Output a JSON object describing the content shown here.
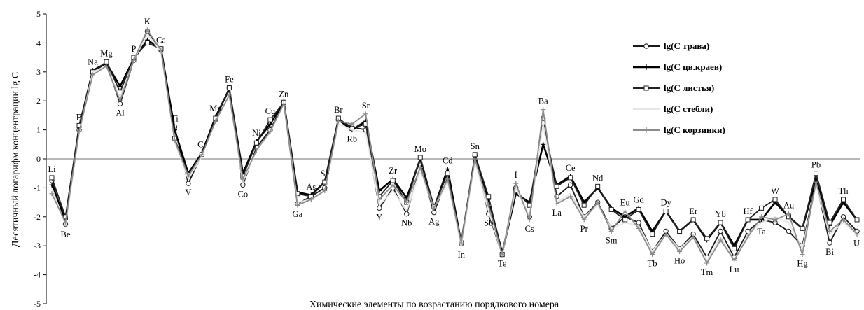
{
  "chart_data": {
    "type": "line",
    "title": "",
    "xlabel": "Химические элементы по возрастанию порядкового номера",
    "ylabel": "Десятичный логарифм концентрации lg C",
    "ylim": [
      -5,
      5
    ],
    "yticks": [
      5,
      4,
      3,
      2,
      1,
      0,
      -1,
      -2,
      -3,
      -4,
      -5
    ],
    "grid": false,
    "legend_position": "right",
    "categories": [
      "Li",
      "Be",
      "B",
      "Na",
      "Mg",
      "Al",
      "P",
      "K",
      "Ca",
      "Ti",
      "V",
      "Cr",
      "Mn",
      "Fe",
      "Co",
      "Ni",
      "Cu",
      "Zn",
      "Ga",
      "As",
      "Se",
      "Br",
      "Rb",
      "Sr",
      "Y",
      "Zr",
      "Nb",
      "Mo",
      "Ag",
      "Cd",
      "In",
      "Sn",
      "Sb",
      "Te",
      "I",
      "Cs",
      "Ba",
      "La",
      "Ce",
      "Pr",
      "Nd",
      "Sm",
      "Eu",
      "Gd",
      "Tb",
      "Dy",
      "Ho",
      "Er",
      "Tm",
      "Yb",
      "Lu",
      "Hf",
      "Ta",
      "W",
      "Au",
      "Hg",
      "Pb",
      "Bi",
      "Th",
      "U"
    ],
    "label_pos": [
      "above",
      "below",
      "above",
      "above",
      "above",
      "below",
      "above",
      "above",
      "above",
      "above",
      "below",
      "above",
      "above",
      "above",
      "below",
      "above",
      "above",
      "above",
      "below",
      "above",
      "above",
      "above",
      "below",
      "above",
      "below",
      "above",
      "below",
      "above",
      "below",
      "above",
      "below",
      "above",
      "below",
      "below",
      "above",
      "below",
      "above",
      "below",
      "above",
      "below",
      "above",
      "below",
      "above",
      "above",
      "below",
      "above",
      "below",
      "above",
      "below",
      "above",
      "below",
      "above",
      "below",
      "above",
      "above",
      "below",
      "above",
      "below",
      "above",
      "below"
    ],
    "series": [
      {
        "name": "lg(С трава)",
        "color": "#1a1a1a",
        "marker": "circle",
        "values": [
          -0.75,
          -2.25,
          1.0,
          3.0,
          3.3,
          1.9,
          3.4,
          4.4,
          3.75,
          1.1,
          -0.85,
          0.15,
          1.35,
          2.45,
          -0.9,
          0.4,
          1.0,
          1.95,
          -1.55,
          -1.3,
          -1.0,
          1.35,
          1.1,
          1.0,
          -1.7,
          -1.0,
          -1.9,
          -0.25,
          -1.85,
          -0.65,
          -2.9,
          0.1,
          -1.9,
          -3.3,
          -1.0,
          -2.0,
          1.4,
          -1.3,
          -0.9,
          -2.0,
          -1.5,
          -2.4,
          -2.0,
          -2.2,
          -3.2,
          -2.5,
          -3.1,
          -2.6,
          -3.4,
          -2.5,
          -3.4,
          -2.5,
          -2.1,
          -2.2,
          -2.5,
          -3.0,
          -0.8,
          -2.9,
          -2.0,
          -2.5
        ]
      },
      {
        "name": "lg(С цв.краев)",
        "color": "#000000",
        "marker": "cross",
        "values": [
          -0.9,
          -2.1,
          1.1,
          3.05,
          3.3,
          2.5,
          3.45,
          4.1,
          3.8,
          1.0,
          -0.5,
          0.2,
          1.45,
          2.4,
          -0.5,
          0.6,
          1.2,
          1.95,
          -1.15,
          -1.25,
          -0.8,
          1.35,
          1.0,
          1.3,
          -1.1,
          -0.7,
          -1.35,
          0.0,
          -1.7,
          -0.35,
          -2.9,
          0.0,
          -1.4,
          -3.25,
          -1.2,
          -1.5,
          0.5,
          -0.9,
          -0.6,
          -1.5,
          -1.0,
          -1.7,
          -2.0,
          -1.7,
          -2.5,
          -1.8,
          -2.5,
          -2.1,
          -2.8,
          -2.2,
          -3.0,
          -2.1,
          -2.1,
          -1.5,
          -2.0,
          -2.4,
          -0.7,
          -2.3,
          -1.5,
          -2.1
        ]
      },
      {
        "name": "lg(С листья)",
        "color": "#222222",
        "marker": "square",
        "values": [
          -0.65,
          -2.0,
          1.15,
          3.0,
          3.35,
          2.3,
          3.5,
          4.0,
          3.8,
          0.7,
          -0.55,
          0.15,
          1.4,
          2.45,
          -0.6,
          0.55,
          1.35,
          1.95,
          -1.2,
          -1.3,
          -0.8,
          1.4,
          1.05,
          1.2,
          -1.3,
          -0.75,
          -1.5,
          0.05,
          -1.65,
          -0.5,
          -2.9,
          0.15,
          -1.3,
          -3.3,
          -1.1,
          -1.6,
          1.25,
          -0.95,
          -0.65,
          -1.6,
          -0.95,
          -1.75,
          -2.1,
          -1.75,
          -2.6,
          -1.8,
          -2.5,
          -2.1,
          -2.75,
          -2.2,
          -3.1,
          -2.1,
          -1.7,
          -1.4,
          -2.0,
          -2.4,
          -0.5,
          -2.2,
          -1.4,
          -2.1
        ]
      },
      {
        "name": "lg(С стебли)",
        "color": "#e6e6e6",
        "marker": "none",
        "values": [
          -1.0,
          -2.3,
          0.9,
          3.0,
          3.2,
          2.1,
          3.4,
          4.3,
          3.7,
          0.6,
          -0.7,
          0.1,
          1.3,
          2.2,
          -0.8,
          0.3,
          0.9,
          1.9,
          -1.5,
          -1.4,
          -1.1,
          1.2,
          1.0,
          0.9,
          -1.6,
          -1.1,
          -1.8,
          -0.4,
          -1.7,
          -0.8,
          -3.0,
          -0.1,
          -1.8,
          -3.3,
          -1.0,
          -2.0,
          1.2,
          -1.5,
          -1.2,
          -2.0,
          -1.6,
          -2.4,
          -2.2,
          -2.3,
          -3.2,
          -2.6,
          -3.1,
          -2.7,
          -3.5,
          -2.7,
          -3.5,
          -2.6,
          -2.2,
          -2.0,
          -2.2,
          -3.1,
          -0.9,
          -2.6,
          -2.2,
          -2.6
        ]
      },
      {
        "name": "lg(С корзинки)",
        "color": "#8c8c8c",
        "marker": "cross",
        "values": [
          -1.2,
          -2.2,
          0.95,
          2.9,
          3.2,
          2.0,
          3.4,
          4.45,
          3.75,
          0.65,
          -0.6,
          0.15,
          1.3,
          2.2,
          -0.7,
          0.3,
          0.95,
          1.9,
          -1.6,
          -1.4,
          -1.1,
          1.3,
          1.2,
          1.55,
          -1.4,
          -0.9,
          -1.5,
          -0.3,
          -1.7,
          -0.7,
          -2.9,
          0.0,
          -1.6,
          -3.3,
          -0.85,
          -2.1,
          1.7,
          -1.55,
          -1.3,
          -2.1,
          -1.5,
          -2.5,
          -1.8,
          -2.4,
          -3.3,
          -2.6,
          -3.2,
          -2.7,
          -3.6,
          -2.8,
          -3.5,
          -2.7,
          -2.0,
          -2.1,
          -1.9,
          -3.3,
          -0.8,
          -2.5,
          -2.1,
          -2.6
        ]
      }
    ]
  }
}
